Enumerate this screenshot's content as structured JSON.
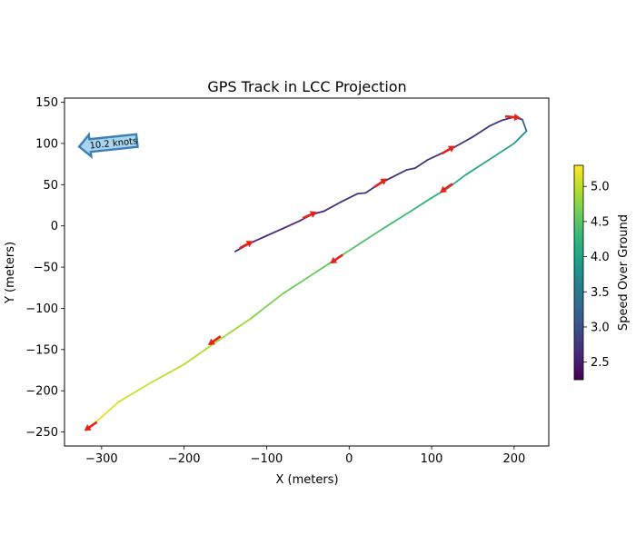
{
  "chart_data": {
    "type": "line",
    "title": "GPS Track in LCC Projection",
    "xlabel": "X (meters)",
    "ylabel": "Y (meters)",
    "xlim": [
      -345,
      242
    ],
    "ylim": [
      -267,
      155
    ],
    "xticks": [
      -300,
      -200,
      -100,
      0,
      100,
      200
    ],
    "yticks": [
      -250,
      -200,
      -150,
      -100,
      -50,
      0,
      50,
      100,
      150
    ],
    "xtick_labels": [
      "−300",
      "−200",
      "−100",
      "0",
      "100",
      "200"
    ],
    "ytick_labels": [
      "−250",
      "−200",
      "−150",
      "−100",
      "−50",
      "0",
      "50",
      "100",
      "150"
    ],
    "colorbar": {
      "label": "Speed Over Ground",
      "range": [
        2.25,
        5.3
      ],
      "ticks": [
        2.5,
        3.0,
        3.5,
        4.0,
        4.5,
        5.0
      ],
      "tick_labels": [
        "2.5",
        "3.0",
        "3.5",
        "4.0",
        "4.5",
        "5.0"
      ],
      "colormap": [
        "#440154",
        "#482878",
        "#3e4989",
        "#31688e",
        "#26828e",
        "#1f9e89",
        "#35b779",
        "#6ece58",
        "#b5de2b",
        "#fde725"
      ]
    },
    "wind_annotation": {
      "label": "10.2 knots",
      "x": -290,
      "y": 100,
      "direction": "west"
    },
    "track": [
      {
        "x": -138,
        "y": -31,
        "speed": 2.6
      },
      {
        "x": -120,
        "y": -21,
        "speed": 2.6
      },
      {
        "x": -100,
        "y": -12,
        "speed": 2.6
      },
      {
        "x": -80,
        "y": -3,
        "speed": 2.6
      },
      {
        "x": -60,
        "y": 6,
        "speed": 2.6
      },
      {
        "x": -45,
        "y": 14,
        "speed": 2.6
      },
      {
        "x": -30,
        "y": 18,
        "speed": 2.6
      },
      {
        "x": -10,
        "y": 29,
        "speed": 2.7
      },
      {
        "x": 10,
        "y": 39,
        "speed": 2.7
      },
      {
        "x": 20,
        "y": 40,
        "speed": 2.7
      },
      {
        "x": 35,
        "y": 50,
        "speed": 2.7
      },
      {
        "x": 50,
        "y": 58,
        "speed": 2.7
      },
      {
        "x": 70,
        "y": 68,
        "speed": 2.7
      },
      {
        "x": 80,
        "y": 70,
        "speed": 2.7
      },
      {
        "x": 95,
        "y": 80,
        "speed": 2.7
      },
      {
        "x": 110,
        "y": 87,
        "speed": 2.7
      },
      {
        "x": 125,
        "y": 94,
        "speed": 2.7
      },
      {
        "x": 150,
        "y": 108,
        "speed": 2.7
      },
      {
        "x": 170,
        "y": 121,
        "speed": 2.7
      },
      {
        "x": 185,
        "y": 128,
        "speed": 2.7
      },
      {
        "x": 200,
        "y": 132,
        "speed": 2.7
      },
      {
        "x": 210,
        "y": 129,
        "speed": 2.8
      },
      {
        "x": 215,
        "y": 115,
        "speed": 3.6
      },
      {
        "x": 200,
        "y": 100,
        "speed": 4.0
      },
      {
        "x": 180,
        "y": 87,
        "speed": 4.1
      },
      {
        "x": 160,
        "y": 74,
        "speed": 4.1
      },
      {
        "x": 140,
        "y": 61,
        "speed": 4.1
      },
      {
        "x": 120,
        "y": 46,
        "speed": 4.2
      },
      {
        "x": 100,
        "y": 34,
        "speed": 4.2
      },
      {
        "x": 75,
        "y": 18,
        "speed": 4.3
      },
      {
        "x": 40,
        "y": -4,
        "speed": 4.4
      },
      {
        "x": 0,
        "y": -30,
        "speed": 4.5
      },
      {
        "x": -40,
        "y": -56,
        "speed": 4.6
      },
      {
        "x": -80,
        "y": -82,
        "speed": 4.6
      },
      {
        "x": -120,
        "y": -113,
        "speed": 4.8
      },
      {
        "x": -160,
        "y": -140,
        "speed": 4.9
      },
      {
        "x": -200,
        "y": -168,
        "speed": 5.0
      },
      {
        "x": -240,
        "y": -190,
        "speed": 5.0
      },
      {
        "x": -280,
        "y": -214,
        "speed": 5.1
      },
      {
        "x": -300,
        "y": -232,
        "speed": 5.2
      },
      {
        "x": -318,
        "y": -247,
        "speed": 5.2
      }
    ],
    "heading_arrows": [
      {
        "x": -125,
        "y": -23,
        "angle_deg": 28
      },
      {
        "x": -48,
        "y": 13,
        "angle_deg": 24
      },
      {
        "x": 38,
        "y": 52,
        "angle_deg": 34
      },
      {
        "x": 120,
        "y": 92,
        "angle_deg": 30
      },
      {
        "x": 198,
        "y": 132,
        "angle_deg": -5
      },
      {
        "x": 118,
        "y": 46,
        "angle_deg": 215
      },
      {
        "x": -15,
        "y": -40,
        "angle_deg": 215
      },
      {
        "x": -163,
        "y": -139,
        "angle_deg": 215
      },
      {
        "x": -313,
        "y": -243,
        "angle_deg": 215
      }
    ]
  }
}
